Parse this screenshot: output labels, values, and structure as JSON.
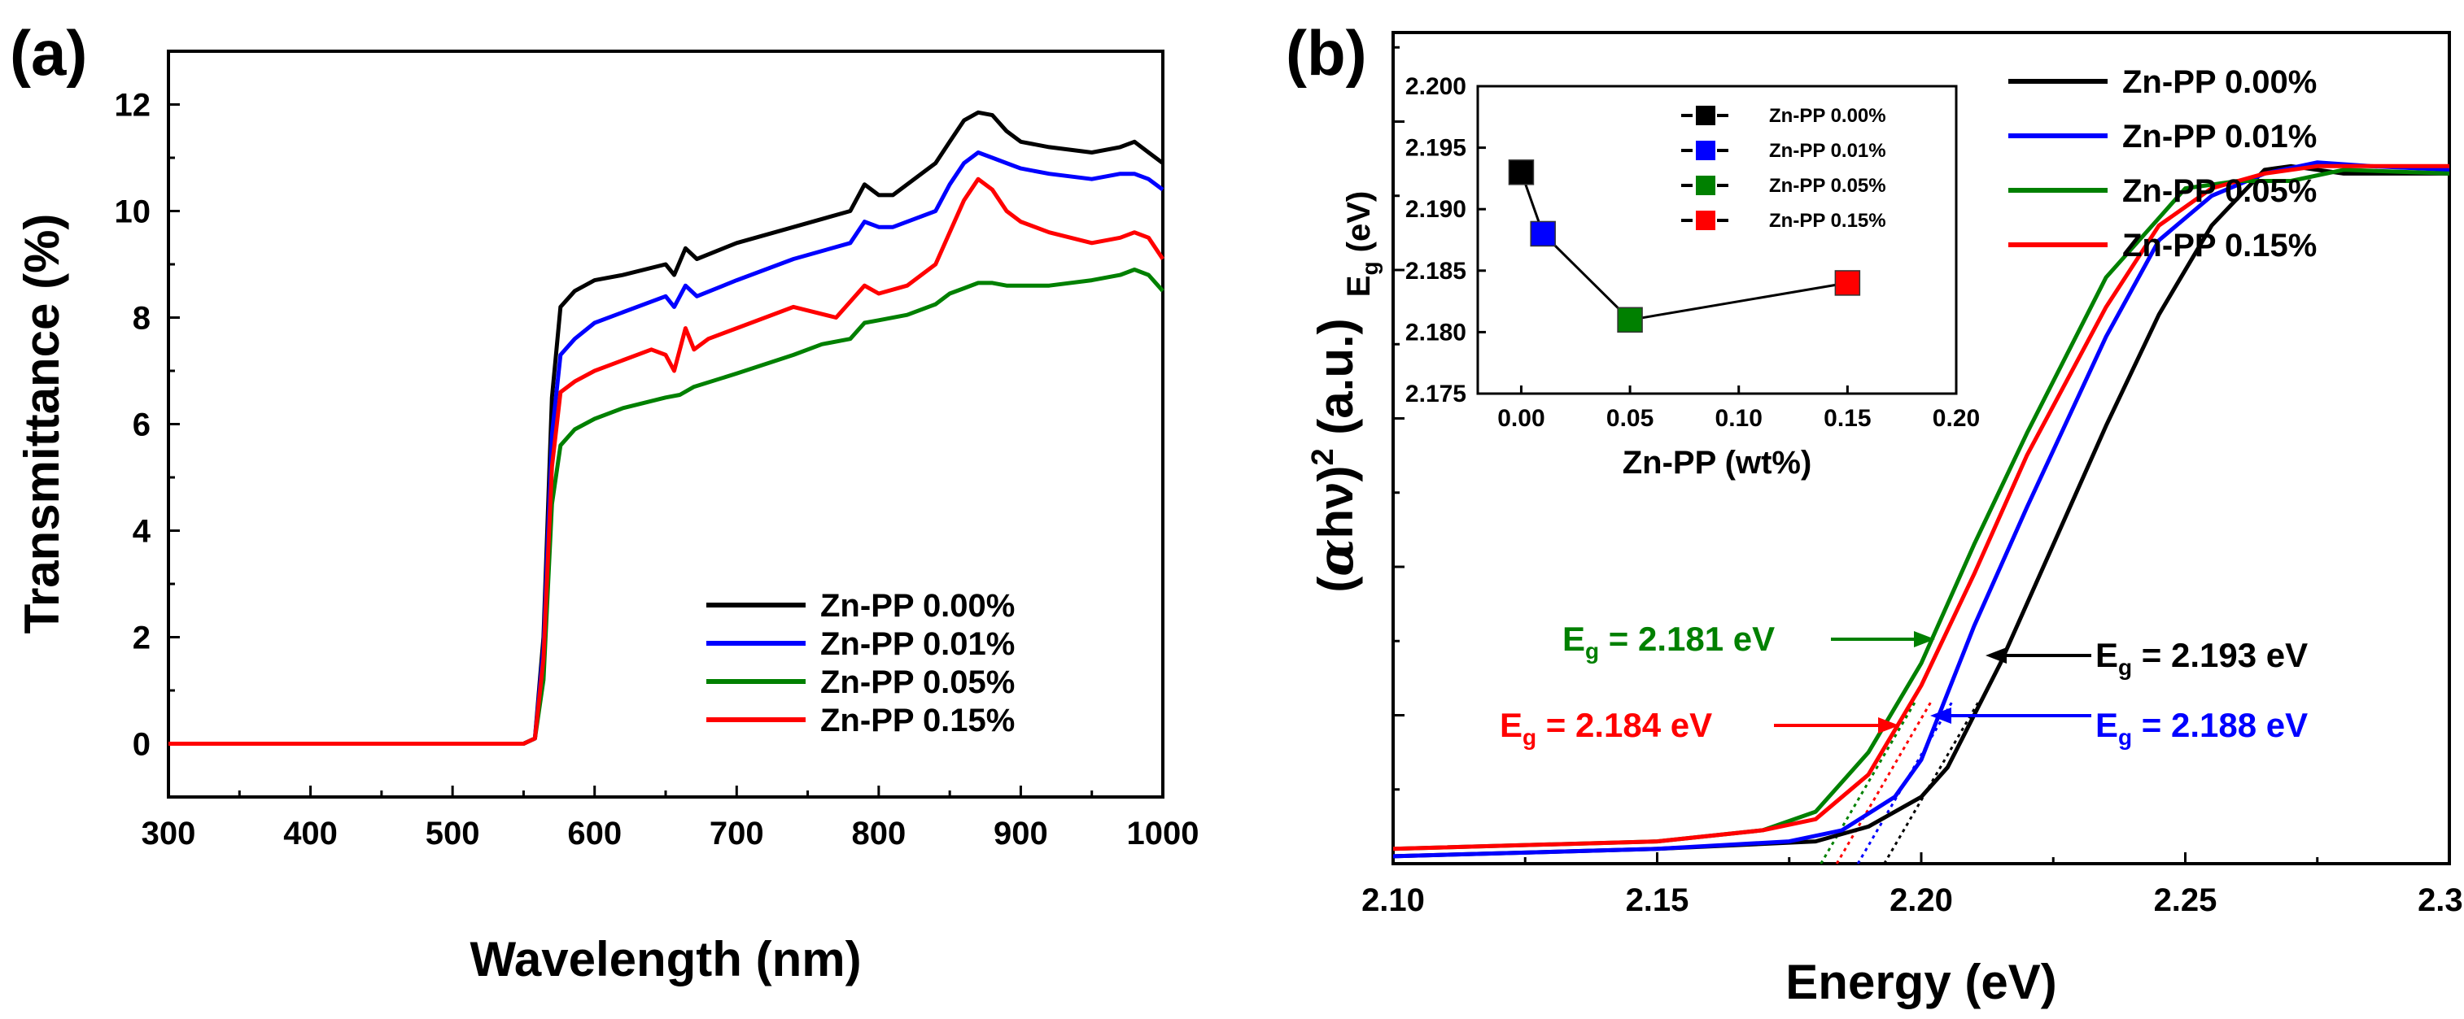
{
  "colors": {
    "zn000": "#000000",
    "zn001": "#0000ff",
    "zn005": "#008000",
    "zn015": "#ff0000"
  },
  "chart_data": [
    {
      "type": "line",
      "panel_label": "(a)",
      "xlabel": "Wavelength (nm)",
      "ylabel": "Transmittance (%)",
      "xlim": [
        300,
        1000
      ],
      "ylim": [
        -1,
        13
      ],
      "xticks": [
        300,
        400,
        500,
        600,
        700,
        800,
        900,
        1000
      ],
      "yticks": [
        0,
        2,
        4,
        6,
        8,
        10,
        12
      ],
      "legend_position": "bottom-right",
      "series": [
        {
          "name": "Zn-PP 0.00%",
          "color_key": "zn000",
          "x": [
            300,
            550,
            558,
            564,
            570,
            576,
            586,
            600,
            620,
            650,
            656,
            664,
            672,
            700,
            740,
            780,
            790,
            800,
            810,
            840,
            850,
            860,
            870,
            880,
            890,
            900,
            920,
            950,
            970,
            980,
            990,
            1000
          ],
          "y": [
            0,
            0,
            0.1,
            2.0,
            6.5,
            8.2,
            8.5,
            8.7,
            8.8,
            9.0,
            8.8,
            9.3,
            9.1,
            9.4,
            9.7,
            10.0,
            10.5,
            10.3,
            10.3,
            10.9,
            11.3,
            11.7,
            11.85,
            11.8,
            11.5,
            11.3,
            11.2,
            11.1,
            11.2,
            11.3,
            11.1,
            10.9
          ]
        },
        {
          "name": "Zn-PP 0.01%",
          "color_key": "zn001",
          "x": [
            300,
            550,
            558,
            564,
            570,
            576,
            586,
            600,
            620,
            650,
            656,
            664,
            672,
            700,
            740,
            780,
            790,
            800,
            810,
            840,
            850,
            860,
            870,
            880,
            890,
            900,
            920,
            950,
            970,
            980,
            990,
            1000
          ],
          "y": [
            0,
            0,
            0.1,
            1.8,
            5.8,
            7.3,
            7.6,
            7.9,
            8.1,
            8.4,
            8.2,
            8.6,
            8.4,
            8.7,
            9.1,
            9.4,
            9.8,
            9.7,
            9.7,
            10.0,
            10.5,
            10.9,
            11.1,
            11.0,
            10.9,
            10.8,
            10.7,
            10.6,
            10.7,
            10.7,
            10.6,
            10.4
          ]
        },
        {
          "name": "Zn-PP 0.05%",
          "color_key": "zn005",
          "x": [
            300,
            550,
            558,
            564,
            570,
            576,
            586,
            600,
            620,
            650,
            660,
            670,
            700,
            740,
            760,
            780,
            790,
            800,
            820,
            840,
            850,
            860,
            870,
            880,
            890,
            900,
            920,
            950,
            970,
            980,
            990,
            1000
          ],
          "y": [
            0,
            0,
            0.1,
            1.2,
            4.5,
            5.6,
            5.9,
            6.1,
            6.3,
            6.5,
            6.55,
            6.7,
            6.95,
            7.3,
            7.5,
            7.6,
            7.9,
            7.95,
            8.05,
            8.25,
            8.45,
            8.55,
            8.65,
            8.65,
            8.6,
            8.6,
            8.6,
            8.7,
            8.8,
            8.9,
            8.8,
            8.5
          ]
        },
        {
          "name": "Zn-PP 0.15%",
          "color_key": "zn015",
          "x": [
            300,
            550,
            558,
            564,
            570,
            576,
            586,
            600,
            620,
            640,
            650,
            656,
            664,
            670,
            680,
            700,
            740,
            770,
            790,
            800,
            820,
            840,
            850,
            860,
            870,
            880,
            890,
            900,
            920,
            950,
            970,
            980,
            990,
            1000
          ],
          "y": [
            0,
            0,
            0.1,
            1.6,
            5.2,
            6.6,
            6.8,
            7.0,
            7.2,
            7.4,
            7.3,
            7.0,
            7.8,
            7.4,
            7.6,
            7.8,
            8.2,
            8.0,
            8.6,
            8.45,
            8.6,
            9.0,
            9.6,
            10.2,
            10.6,
            10.4,
            10.0,
            9.8,
            9.6,
            9.4,
            9.5,
            9.6,
            9.5,
            9.1
          ]
        }
      ]
    },
    {
      "type": "line",
      "panel_label": "(b)",
      "xlabel": "Energy (eV)",
      "ylabel_parts": [
        "(",
        "α",
        "hν)",
        "2",
        " (a.u.)"
      ],
      "xlim": [
        2.1,
        2.3
      ],
      "ylim": [
        0,
        1.12
      ],
      "xticks": [
        "2.10",
        "2.15",
        "2.20",
        "2.25",
        "2.30"
      ],
      "legend_position": "top-right",
      "series": [
        {
          "name": "Zn-PP 0.00%",
          "color_key": "zn000",
          "eg": 2.193,
          "x": [
            2.1,
            2.15,
            2.18,
            2.19,
            2.2,
            2.205,
            2.215,
            2.225,
            2.235,
            2.245,
            2.255,
            2.265,
            2.27,
            2.28,
            2.29,
            2.3
          ],
          "y": [
            0.01,
            0.02,
            0.03,
            0.05,
            0.09,
            0.13,
            0.27,
            0.43,
            0.59,
            0.74,
            0.86,
            0.935,
            0.94,
            0.93,
            0.93,
            0.93
          ]
        },
        {
          "name": "Zn-PP 0.01%",
          "color_key": "zn001",
          "eg": 2.188,
          "x": [
            2.1,
            2.15,
            2.175,
            2.185,
            2.195,
            2.2,
            2.21,
            2.22,
            2.235,
            2.245,
            2.255,
            2.265,
            2.275,
            2.285,
            2.3
          ],
          "y": [
            0.01,
            0.02,
            0.03,
            0.045,
            0.09,
            0.14,
            0.32,
            0.48,
            0.71,
            0.84,
            0.9,
            0.93,
            0.945,
            0.94,
            0.935
          ]
        },
        {
          "name": "Zn-PP 0.05%",
          "color_key": "zn005",
          "eg": 2.181,
          "x": [
            2.1,
            2.15,
            2.17,
            2.18,
            2.19,
            2.2,
            2.21,
            2.22,
            2.235,
            2.245,
            2.25,
            2.26,
            2.27,
            2.28,
            2.3
          ],
          "y": [
            0.02,
            0.03,
            0.045,
            0.07,
            0.15,
            0.27,
            0.43,
            0.58,
            0.79,
            0.87,
            0.91,
            0.92,
            0.92,
            0.935,
            0.93
          ]
        },
        {
          "name": "Zn-PP 0.15%",
          "color_key": "zn015",
          "eg": 2.184,
          "x": [
            2.1,
            2.15,
            2.17,
            2.18,
            2.19,
            2.2,
            2.21,
            2.22,
            2.235,
            2.245,
            2.255,
            2.265,
            2.275,
            2.285,
            2.3
          ],
          "y": [
            0.02,
            0.03,
            0.045,
            0.06,
            0.12,
            0.24,
            0.39,
            0.55,
            0.75,
            0.86,
            0.91,
            0.93,
            0.94,
            0.94,
            0.94
          ]
        }
      ],
      "annotations": [
        {
          "text_prefix": "E",
          "sub": "g",
          "text_suffix": " = 2.181 eV",
          "color_key": "zn005"
        },
        {
          "text_prefix": "E",
          "sub": "g",
          "text_suffix": " = 2.184 eV",
          "color_key": "zn015"
        },
        {
          "text_prefix": "E",
          "sub": "g",
          "text_suffix": " = 2.193 eV",
          "color_key": "zn000"
        },
        {
          "text_prefix": "E",
          "sub": "g",
          "text_suffix": " = 2.188 eV",
          "color_key": "zn001"
        }
      ],
      "inset": {
        "type": "scatter",
        "xlabel": "Zn-PP (wt%)",
        "ylabel_main": "E",
        "ylabel_sub": "g",
        "ylabel_unit": " (eV)",
        "xlim": [
          -0.02,
          0.2
        ],
        "ylim": [
          2.175,
          2.2
        ],
        "xticks": [
          "0.00",
          "0.05",
          "0.10",
          "0.15",
          "0.20"
        ],
        "yticks": [
          "2.175",
          "2.180",
          "2.185",
          "2.190",
          "2.195",
          "2.200"
        ],
        "points": [
          {
            "name": "Zn-PP 0.00%",
            "x": 0.0,
            "y": 2.193,
            "color_key": "zn000"
          },
          {
            "name": "Zn-PP 0.01%",
            "x": 0.01,
            "y": 2.188,
            "color_key": "zn001"
          },
          {
            "name": "Zn-PP 0.05%",
            "x": 0.05,
            "y": 2.181,
            "color_key": "zn005"
          },
          {
            "name": "Zn-PP 0.15%",
            "x": 0.15,
            "y": 2.184,
            "color_key": "zn015"
          }
        ]
      }
    }
  ]
}
